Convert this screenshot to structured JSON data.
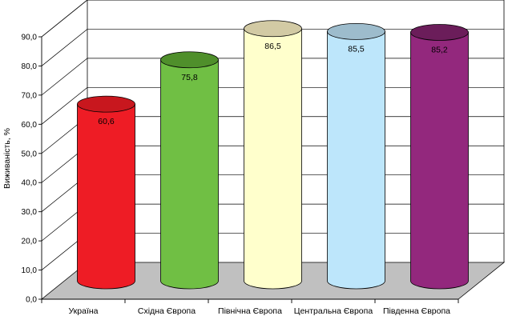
{
  "chart_data": {
    "type": "bar",
    "categories": [
      "Україна",
      "Східна Європа",
      "Північна Європа",
      "Центральна Європа",
      "Південна Європа"
    ],
    "values": [
      60.6,
      75.8,
      86.5,
      85.5,
      85.2
    ],
    "data_labels": [
      "60,6",
      "75,8",
      "86,5",
      "85,5",
      "85,2"
    ],
    "ylabel": "Виживаність, %",
    "ylim": [
      0,
      90
    ],
    "yticks": [
      0,
      10,
      20,
      30,
      40,
      50,
      60,
      70,
      80,
      90
    ],
    "ytick_labels": [
      "0,0",
      "10,0",
      "20,0",
      "30,0",
      "40,0",
      "50,0",
      "60,0",
      "70,0",
      "80,0",
      "90,0"
    ],
    "grid": true,
    "style": "3d-cylinder",
    "colors": [
      "#ee1c25",
      "#70bf44",
      "#ffffcc",
      "#bde6fb",
      "#93287d"
    ],
    "top_colors": [
      "#c8171e",
      "#4f8f2b",
      "#d2caa4",
      "#9dbccc",
      "#6b1d5a"
    ]
  }
}
